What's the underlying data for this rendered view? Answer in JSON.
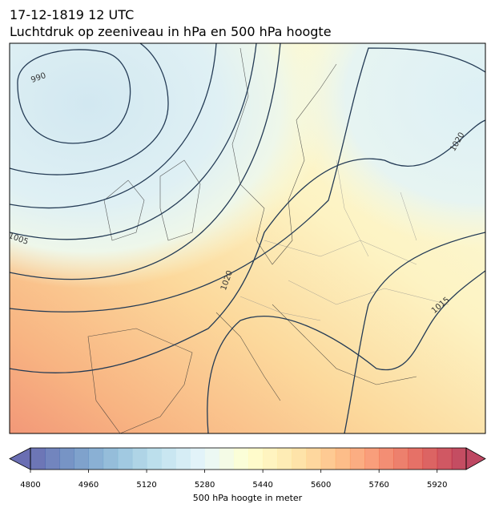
{
  "header": {
    "title": "17-12-1819 12 UTC",
    "subtitle": "Luchtdruk op zeeniveau in hPa en 500 hPa hoogte"
  },
  "map": {
    "contour_labels": [
      990,
      1005,
      1020,
      1020,
      1015
    ]
  },
  "colorbar": {
    "label": "500 hPa hoogte in meter",
    "range": [
      4800,
      6000
    ],
    "ticks": [
      4800,
      4960,
      5120,
      5280,
      5440,
      5600,
      5760,
      5920
    ]
  }
}
